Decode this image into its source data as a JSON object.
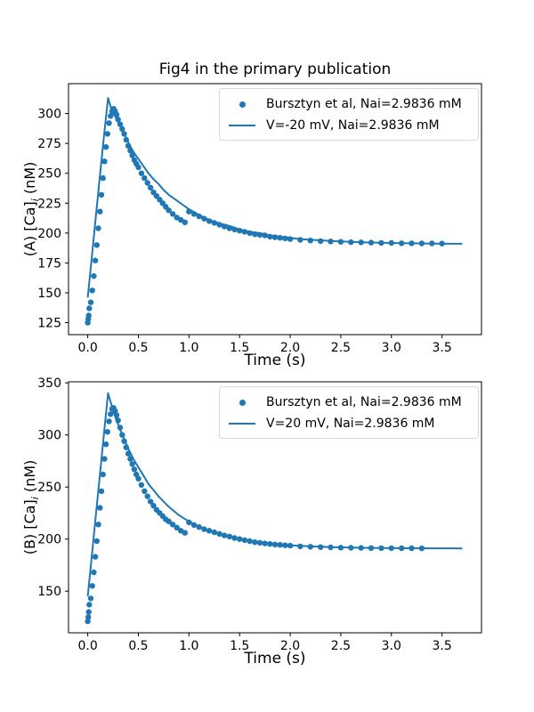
{
  "title": "Fig4 in the primary publication",
  "accent_color": "#1f77b4",
  "chart_data": [
    {
      "type": "scatter",
      "panel": "A",
      "xlabel": "Time (s)",
      "ylabel_prefix": "(A) [Ca]",
      "ylabel_sub": "i",
      "ylabel_suffix": " (nM)",
      "xlim": [
        -0.19,
        3.89
      ],
      "ylim": [
        115,
        325
      ],
      "xticks": [
        0.0,
        0.5,
        1.0,
        1.5,
        2.0,
        2.5,
        3.0,
        3.5
      ],
      "xtick_labels": [
        "0.0",
        "0.5",
        "1.0",
        "1.5",
        "2.0",
        "2.5",
        "3.0",
        "3.5"
      ],
      "yticks": [
        125,
        150,
        175,
        200,
        225,
        250,
        275,
        300
      ],
      "ytick_labels": [
        "125",
        "150",
        "175",
        "200",
        "225",
        "250",
        "275",
        "300"
      ],
      "legend": [
        {
          "label": "Bursztyn et al, Nai=2.9836 mM",
          "marker": "dot"
        },
        {
          "label": "V=-20 mV, Nai=2.9836 mM",
          "marker": "line"
        }
      ],
      "color": "#1f77b4",
      "scatter": [
        [
          0,
          125
        ],
        [
          0.005,
          128
        ],
        [
          0.01,
          131
        ],
        [
          0.015,
          137
        ],
        [
          0.03,
          142
        ],
        [
          0.045,
          152
        ],
        [
          0.06,
          164
        ],
        [
          0.075,
          177
        ],
        [
          0.09,
          190
        ],
        [
          0.105,
          204
        ],
        [
          0.12,
          218
        ],
        [
          0.135,
          232
        ],
        [
          0.15,
          246
        ],
        [
          0.165,
          260
        ],
        [
          0.18,
          272
        ],
        [
          0.195,
          283
        ],
        [
          0.21,
          292
        ],
        [
          0.225,
          298
        ],
        [
          0.24,
          302
        ],
        [
          0.255,
          304
        ],
        [
          0.27,
          302
        ],
        [
          0.285,
          299
        ],
        [
          0.3,
          295
        ],
        [
          0.32,
          291
        ],
        [
          0.34,
          287
        ],
        [
          0.36,
          283
        ],
        [
          0.38,
          278
        ],
        [
          0.4,
          273
        ],
        [
          0.42,
          269
        ],
        [
          0.44,
          265
        ],
        [
          0.46,
          261
        ],
        [
          0.48,
          258
        ],
        [
          0.5,
          255
        ],
        [
          0.53,
          250
        ],
        [
          0.56,
          246
        ],
        [
          0.59,
          242
        ],
        [
          0.62,
          238
        ],
        [
          0.65,
          234
        ],
        [
          0.68,
          231
        ],
        [
          0.71,
          228
        ],
        [
          0.74,
          225
        ],
        [
          0.77,
          222
        ],
        [
          0.8,
          219
        ],
        [
          0.84,
          216
        ],
        [
          0.88,
          213
        ],
        [
          0.92,
          211
        ],
        [
          0.96,
          209
        ],
        [
          1.0,
          218
        ],
        [
          1.05,
          216
        ],
        [
          1.1,
          214
        ],
        [
          1.15,
          212
        ],
        [
          1.2,
          210
        ],
        [
          1.25,
          208.5
        ],
        [
          1.3,
          207
        ],
        [
          1.35,
          205.5
        ],
        [
          1.4,
          204
        ],
        [
          1.45,
          203
        ],
        [
          1.5,
          202
        ],
        [
          1.55,
          201
        ],
        [
          1.6,
          200
        ],
        [
          1.65,
          199
        ],
        [
          1.7,
          198.5
        ],
        [
          1.75,
          198
        ],
        [
          1.8,
          197
        ],
        [
          1.85,
          196.5
        ],
        [
          1.9,
          196
        ],
        [
          1.95,
          195.5
        ],
        [
          2.0,
          195
        ],
        [
          2.1,
          194.3
        ],
        [
          2.2,
          193.8
        ],
        [
          2.3,
          193.3
        ],
        [
          2.4,
          193
        ],
        [
          2.5,
          192.7
        ],
        [
          2.6,
          192.4
        ],
        [
          2.7,
          192.2
        ],
        [
          2.8,
          192
        ],
        [
          2.9,
          191.8
        ],
        [
          3.0,
          191.7
        ],
        [
          3.1,
          191.5
        ],
        [
          3.2,
          191.4
        ],
        [
          3.3,
          191.3
        ],
        [
          3.4,
          191.3
        ],
        [
          3.5,
          191.2
        ]
      ],
      "line": [
        [
          0,
          146
        ],
        [
          0.04,
          180
        ],
        [
          0.08,
          214
        ],
        [
          0.12,
          248
        ],
        [
          0.16,
          281
        ],
        [
          0.2,
          313
        ],
        [
          0.24,
          302
        ],
        [
          0.28,
          296
        ],
        [
          0.32,
          290
        ],
        [
          0.36,
          284
        ],
        [
          0.4,
          276
        ],
        [
          0.45,
          268
        ],
        [
          0.5,
          262
        ],
        [
          0.55,
          256
        ],
        [
          0.6,
          250
        ],
        [
          0.65,
          245
        ],
        [
          0.7,
          241
        ],
        [
          0.75,
          236
        ],
        [
          0.8,
          232
        ],
        [
          0.85,
          229
        ],
        [
          0.9,
          226
        ],
        [
          0.95,
          223
        ],
        [
          1.0,
          220
        ],
        [
          1.1,
          215
        ],
        [
          1.2,
          211
        ],
        [
          1.3,
          208
        ],
        [
          1.4,
          206
        ],
        [
          1.5,
          203
        ],
        [
          1.6,
          201
        ],
        [
          1.7,
          200
        ],
        [
          1.8,
          198
        ],
        [
          1.9,
          197
        ],
        [
          2.0,
          196
        ],
        [
          2.1,
          195
        ],
        [
          2.2,
          194.4
        ],
        [
          2.3,
          193.9
        ],
        [
          2.4,
          193.4
        ],
        [
          2.5,
          193
        ],
        [
          2.6,
          192.6
        ],
        [
          2.7,
          192.3
        ],
        [
          2.8,
          192.1
        ],
        [
          2.9,
          191.9
        ],
        [
          3.0,
          191.7
        ],
        [
          3.1,
          191.5
        ],
        [
          3.2,
          191.4
        ],
        [
          3.3,
          191.3
        ],
        [
          3.4,
          191.2
        ],
        [
          3.5,
          191.1
        ],
        [
          3.7,
          191
        ]
      ]
    },
    {
      "type": "scatter",
      "panel": "B",
      "xlabel": "Time (s)",
      "ylabel_prefix": "(B) [Ca]",
      "ylabel_sub": "i",
      "ylabel_suffix": " (nM)",
      "xlim": [
        -0.19,
        3.89
      ],
      "ylim": [
        110,
        351
      ],
      "xticks": [
        0.0,
        0.5,
        1.0,
        1.5,
        2.0,
        2.5,
        3.0,
        3.5
      ],
      "xtick_labels": [
        "0.0",
        "0.5",
        "1.0",
        "1.5",
        "2.0",
        "2.5",
        "3.0",
        "3.5"
      ],
      "yticks": [
        150,
        200,
        250,
        300,
        350
      ],
      "ytick_labels": [
        "150",
        "200",
        "250",
        "300",
        "350"
      ],
      "legend": [
        {
          "label": "Bursztyn et al, Nai=2.9836 mM",
          "marker": "dot"
        },
        {
          "label": "V=20 mV, Nai=2.9836 mM",
          "marker": "line"
        }
      ],
      "color": "#1f77b4",
      "scatter": [
        [
          0,
          121
        ],
        [
          0.005,
          125
        ],
        [
          0.01,
          130
        ],
        [
          0.015,
          137
        ],
        [
          0.03,
          143
        ],
        [
          0.045,
          155
        ],
        [
          0.06,
          168
        ],
        [
          0.075,
          183
        ],
        [
          0.09,
          198
        ],
        [
          0.105,
          214
        ],
        [
          0.12,
          230
        ],
        [
          0.135,
          246
        ],
        [
          0.15,
          262
        ],
        [
          0.165,
          277
        ],
        [
          0.18,
          291
        ],
        [
          0.195,
          303
        ],
        [
          0.21,
          313
        ],
        [
          0.225,
          320
        ],
        [
          0.24,
          325
        ],
        [
          0.255,
          326
        ],
        [
          0.27,
          323
        ],
        [
          0.285,
          319
        ],
        [
          0.3,
          314
        ],
        [
          0.32,
          307
        ],
        [
          0.34,
          300
        ],
        [
          0.36,
          294
        ],
        [
          0.38,
          288
        ],
        [
          0.4,
          282
        ],
        [
          0.42,
          277
        ],
        [
          0.44,
          272
        ],
        [
          0.46,
          267
        ],
        [
          0.48,
          262
        ],
        [
          0.5,
          258
        ],
        [
          0.53,
          252
        ],
        [
          0.56,
          246
        ],
        [
          0.59,
          241
        ],
        [
          0.62,
          236
        ],
        [
          0.65,
          232
        ],
        [
          0.68,
          228
        ],
        [
          0.71,
          225
        ],
        [
          0.74,
          222
        ],
        [
          0.77,
          219
        ],
        [
          0.8,
          217
        ],
        [
          0.84,
          214
        ],
        [
          0.88,
          211
        ],
        [
          0.92,
          208
        ],
        [
          0.96,
          206
        ],
        [
          1.0,
          216
        ],
        [
          1.05,
          213.5
        ],
        [
          1.1,
          211.5
        ],
        [
          1.15,
          209.5
        ],
        [
          1.2,
          208
        ],
        [
          1.25,
          206.5
        ],
        [
          1.3,
          205
        ],
        [
          1.35,
          203.5
        ],
        [
          1.4,
          202.5
        ],
        [
          1.45,
          201
        ],
        [
          1.5,
          200
        ],
        [
          1.55,
          199
        ],
        [
          1.6,
          198
        ],
        [
          1.65,
          197
        ],
        [
          1.7,
          196.5
        ],
        [
          1.75,
          195.8
        ],
        [
          1.8,
          195.3
        ],
        [
          1.85,
          194.8
        ],
        [
          1.9,
          194.4
        ],
        [
          1.95,
          194
        ],
        [
          2.0,
          193.7
        ],
        [
          2.1,
          193
        ],
        [
          2.2,
          192.6
        ],
        [
          2.3,
          192.3
        ],
        [
          2.4,
          192
        ],
        [
          2.5,
          191.8
        ],
        [
          2.6,
          191.6
        ],
        [
          2.7,
          191.5
        ],
        [
          2.8,
          191.4
        ],
        [
          2.9,
          191.3
        ],
        [
          3.0,
          191.3
        ],
        [
          3.1,
          191.2
        ],
        [
          3.2,
          191.2
        ],
        [
          3.3,
          191.1
        ]
      ],
      "line": [
        [
          0,
          145
        ],
        [
          0.04,
          184
        ],
        [
          0.08,
          223
        ],
        [
          0.12,
          262
        ],
        [
          0.16,
          301
        ],
        [
          0.2,
          340
        ],
        [
          0.24,
          327
        ],
        [
          0.28,
          315
        ],
        [
          0.32,
          305
        ],
        [
          0.36,
          296
        ],
        [
          0.4,
          287
        ],
        [
          0.45,
          277
        ],
        [
          0.5,
          269
        ],
        [
          0.55,
          261
        ],
        [
          0.6,
          253
        ],
        [
          0.65,
          247
        ],
        [
          0.7,
          241
        ],
        [
          0.75,
          236
        ],
        [
          0.8,
          231
        ],
        [
          0.85,
          227
        ],
        [
          0.9,
          223
        ],
        [
          0.95,
          220
        ],
        [
          1.0,
          217
        ],
        [
          1.1,
          212
        ],
        [
          1.2,
          208
        ],
        [
          1.3,
          205
        ],
        [
          1.4,
          203
        ],
        [
          1.5,
          200
        ],
        [
          1.6,
          198
        ],
        [
          1.7,
          197
        ],
        [
          1.8,
          196
        ],
        [
          1.9,
          195
        ],
        [
          2.0,
          194
        ],
        [
          2.1,
          193.5
        ],
        [
          2.2,
          193
        ],
        [
          2.3,
          192.6
        ],
        [
          2.4,
          192.3
        ],
        [
          2.5,
          192
        ],
        [
          2.6,
          191.8
        ],
        [
          2.7,
          191.6
        ],
        [
          2.8,
          191.5
        ],
        [
          2.9,
          191.4
        ],
        [
          3.0,
          191.3
        ],
        [
          3.2,
          191.2
        ],
        [
          3.4,
          191.1
        ],
        [
          3.7,
          191
        ]
      ]
    }
  ]
}
